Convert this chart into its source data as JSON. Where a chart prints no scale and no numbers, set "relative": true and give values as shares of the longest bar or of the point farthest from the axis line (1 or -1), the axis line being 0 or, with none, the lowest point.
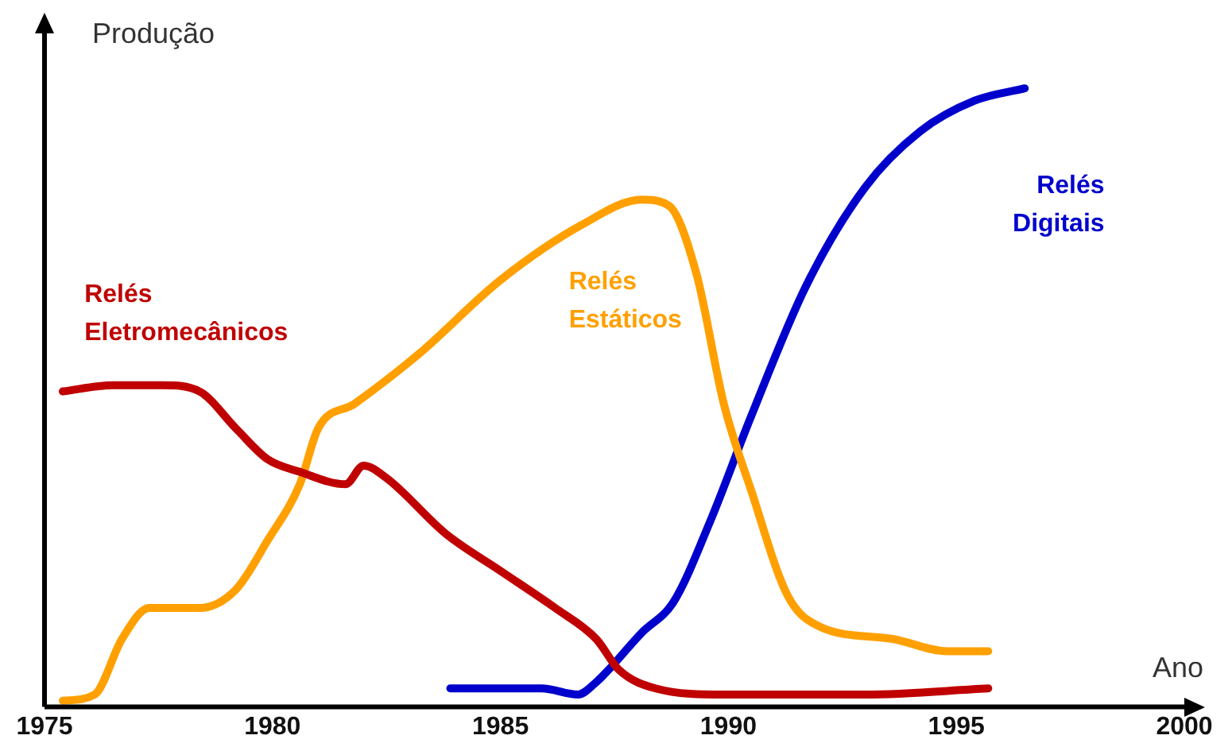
{
  "chart_data": {
    "type": "line",
    "xlabel": "Ano",
    "ylabel": "Produção",
    "relative": true,
    "xlim": [
      1975,
      2000
    ],
    "xticks": [
      1975,
      1980,
      1985,
      1990,
      1995,
      2000
    ],
    "grid": false,
    "legend": false,
    "marker": "none",
    "line_style": "solid",
    "series": [
      {
        "name": "Relés Eletromecânicos",
        "color": "#c00000",
        "x": [
          1975.4,
          1976.5,
          1977.6,
          1978.4,
          1979.2,
          1979.9,
          1980.6,
          1981.6,
          1982.0,
          1982.5,
          1983.8,
          1985,
          1986.2,
          1987.1,
          1987.6,
          1988.4,
          1989.9,
          1993,
          1995.7
        ],
        "values": [
          0.51,
          0.52,
          0.52,
          0.51,
          0.45,
          0.4,
          0.38,
          0.36,
          0.39,
          0.37,
          0.28,
          0.22,
          0.16,
          0.11,
          0.06,
          0.03,
          0.02,
          0.02,
          0.03
        ]
      },
      {
        "name": "Relés Estáticos",
        "color": "#ffa000",
        "x": [
          1975.4,
          1976.1,
          1976.7,
          1977.3,
          1978.4,
          1979.2,
          1979.9,
          1980.6,
          1981,
          1981.8,
          1983.2,
          1985,
          1986.8,
          1988.1,
          1988.7,
          1989.3,
          1989.9,
          1990.5,
          1991.3,
          1992,
          1993.6,
          1994.8,
          1995.7
        ],
        "values": [
          0.01,
          0.02,
          0.11,
          0.16,
          0.16,
          0.19,
          0.27,
          0.36,
          0.45,
          0.49,
          0.57,
          0.69,
          0.78,
          0.82,
          0.81,
          0.7,
          0.49,
          0.35,
          0.18,
          0.13,
          0.11,
          0.09,
          0.09
        ]
      },
      {
        "name": "Relés Digitais",
        "color": "#0000cc",
        "x": [
          1983.9,
          1985.9,
          1986.7,
          1987.1,
          1988.1,
          1988.8,
          1989.6,
          1990.5,
          1991.7,
          1993,
          1994.2,
          1995.4,
          1996.5
        ],
        "values": [
          0.03,
          0.03,
          0.02,
          0.04,
          0.12,
          0.17,
          0.3,
          0.47,
          0.68,
          0.84,
          0.93,
          0.98,
          1
        ]
      }
    ]
  }
}
